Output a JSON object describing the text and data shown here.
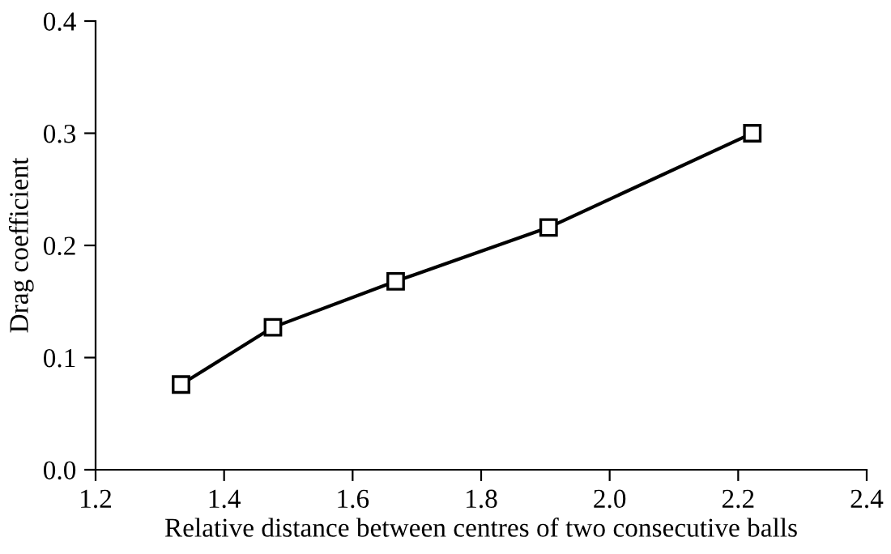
{
  "chart_data": {
    "type": "line",
    "xlabel": "Relative distance between centres of two consecutive balls",
    "ylabel": "Drag coefficient",
    "x": [
      1.333,
      1.476,
      1.667,
      1.905,
      2.222
    ],
    "series": [
      {
        "color": "#000000",
        "values": [
          0.076,
          0.127,
          0.168,
          0.216,
          0.3
        ]
      }
    ],
    "xlim": [
      1.2,
      2.4
    ],
    "xticks": [
      {
        "value": 1.2,
        "label": "1.2"
      },
      {
        "value": 1.4,
        "label": "1.4"
      },
      {
        "value": 1.6,
        "label": "1.6"
      },
      {
        "value": 1.8,
        "label": "1.8"
      },
      {
        "value": 2.0,
        "label": "2.0"
      },
      {
        "value": 2.2,
        "label": "2.2"
      },
      {
        "value": 2.4,
        "label": "2.4"
      }
    ],
    "ylim": [
      0,
      0.4
    ],
    "yticks": [
      {
        "value": 0,
        "label": "0.0"
      },
      {
        "value": 0.1,
        "label": "0.1"
      },
      {
        "value": 0.2,
        "label": "0.2"
      },
      {
        "value": 0.3,
        "label": "0.3"
      },
      {
        "value": 0.4,
        "label": "0.4"
      }
    ],
    "marker": "square",
    "line_style": "solid",
    "grid": false,
    "legend": false
  }
}
